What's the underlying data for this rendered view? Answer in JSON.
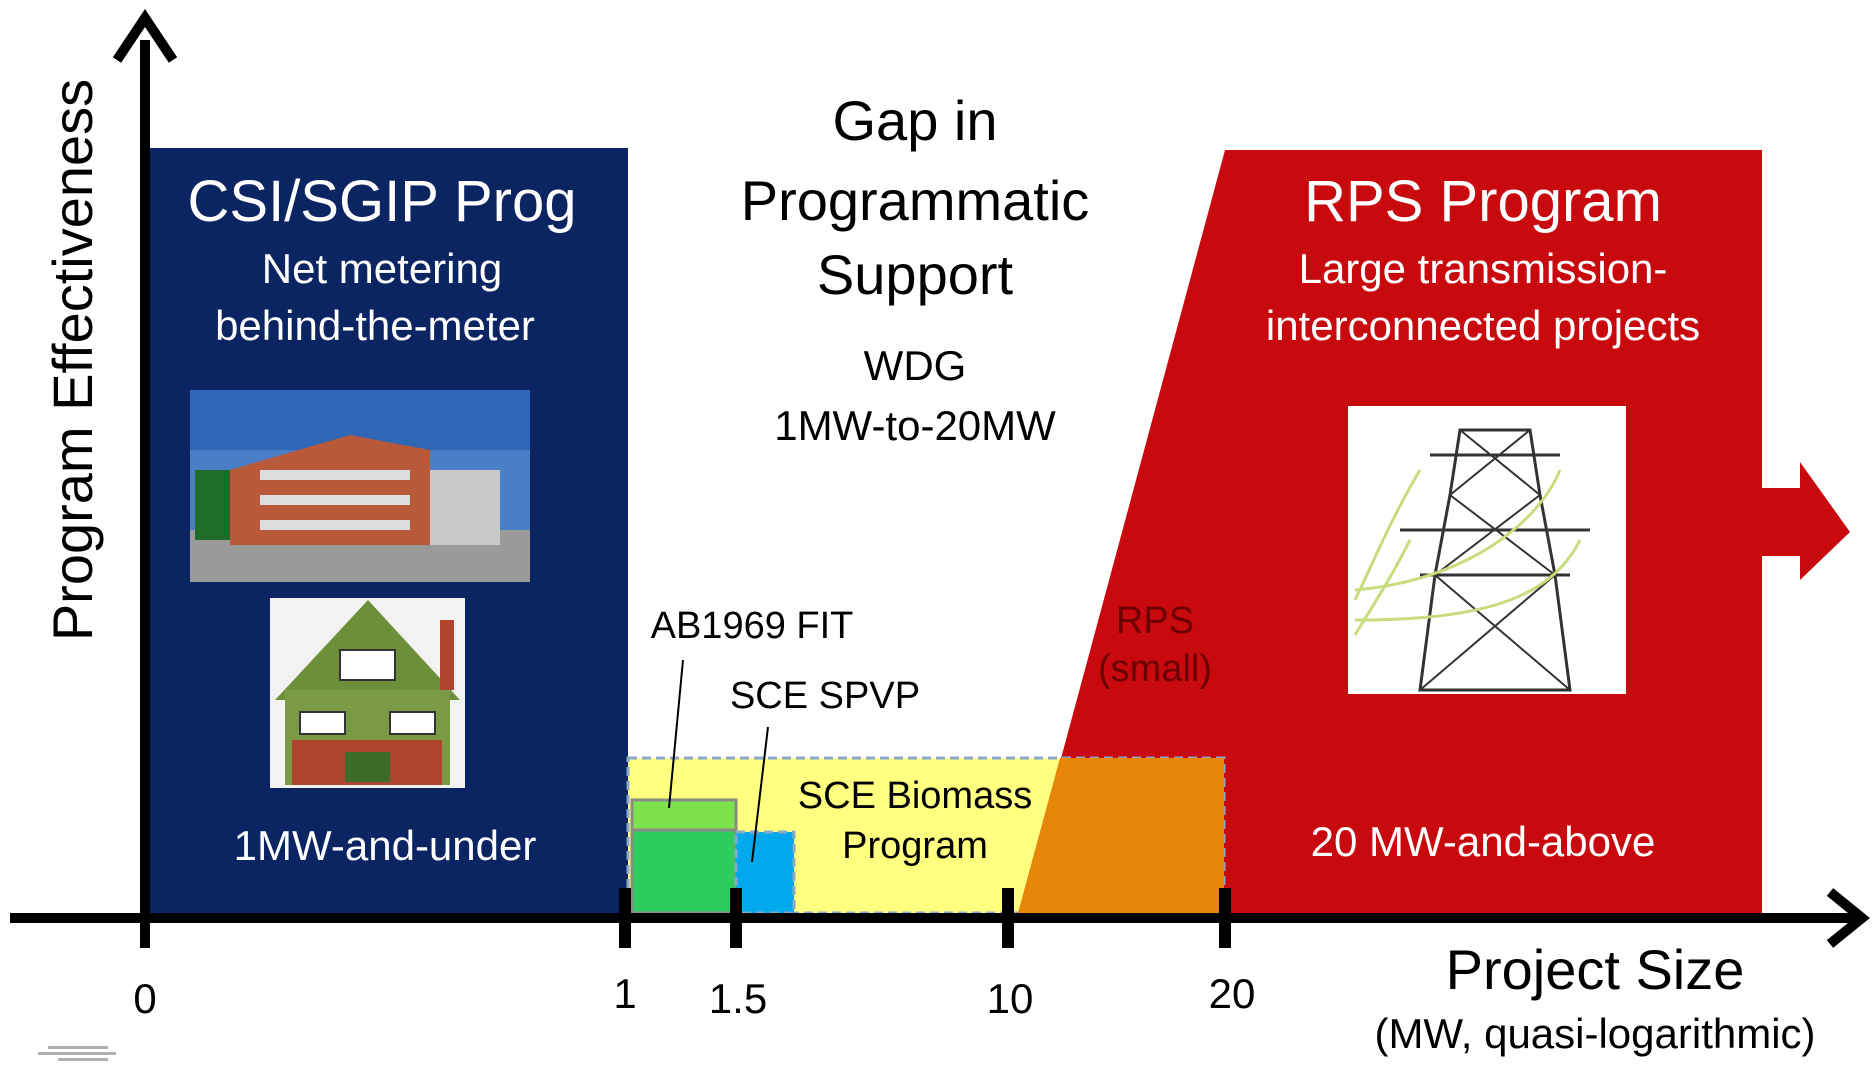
{
  "axes": {
    "y_label": "Program Effectiveness",
    "x_label": "Project Size",
    "x_sublabel": "(MW, quasi-logarithmic)",
    "ticks": [
      "0",
      "1",
      "1.5",
      "10",
      "20"
    ]
  },
  "left_program": {
    "title": "CSI/SGIP Prog",
    "line1": "Net metering",
    "line2": "behind-the-meter",
    "range": "1MW-and-under",
    "color": "#0b2462"
  },
  "gap": {
    "line1": "Gap in",
    "line2": "Programmatic",
    "line3": "Support",
    "wdg1": "WDG",
    "wdg2": "1MW-to-20MW"
  },
  "right_program": {
    "title": "RPS Program",
    "line1": "Large transmission-",
    "line2": "interconnected projects",
    "range": "20 MW-and-above",
    "color": "#c8090d"
  },
  "small_programs": {
    "ab1969": "AB1969 FIT",
    "spvp": "SCE SPVP",
    "biomass1": "SCE Biomass",
    "biomass2": "Program",
    "rps_small1": "RPS",
    "rps_small2": "(small)"
  },
  "colors": {
    "yellow": "#ffff80",
    "green_light": "#7ee24d",
    "green": "#2ecc5e",
    "blue": "#00a8ec",
    "orange": "#e8860a"
  }
}
